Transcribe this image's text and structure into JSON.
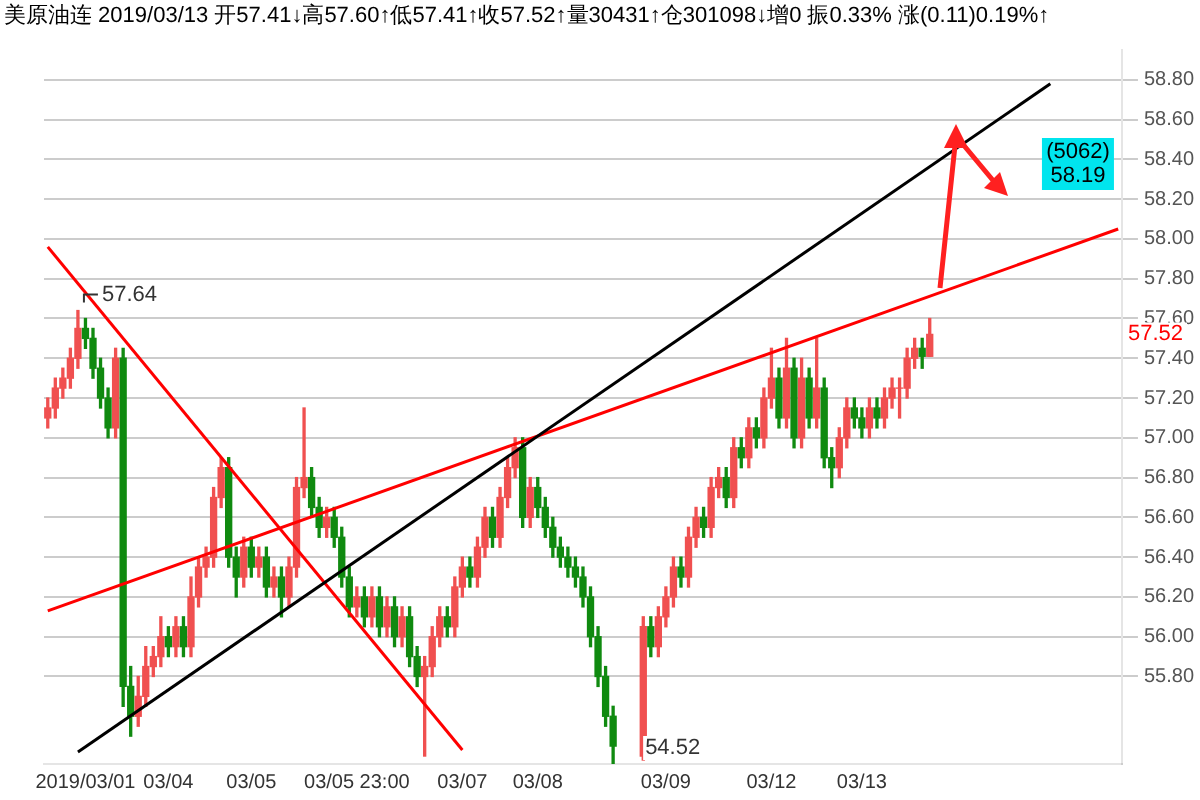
{
  "chart_data": {
    "type": "candlestick",
    "title": "美原油连 2019/03/13 开57.41↓高57.60↑低57.41↑收57.52↑量30431↑仓301098↓增0 振0.33% 涨(0.11)0.19%↑",
    "categories": [
      null,
      null,
      null,
      null,
      null,
      "2019/03/01",
      null,
      null,
      null,
      null,
      null,
      null,
      null,
      null,
      null,
      null,
      "03/04",
      null,
      null,
      null,
      null,
      null,
      null,
      null,
      null,
      null,
      null,
      "03/05",
      null,
      null,
      null,
      null,
      null,
      null,
      null,
      null,
      null,
      null,
      null,
      null,
      null,
      "03/05 23:00",
      null,
      null,
      null,
      null,
      null,
      null,
      null,
      null,
      null,
      null,
      null,
      null,
      null,
      "03/07",
      null,
      null,
      null,
      null,
      null,
      null,
      null,
      null,
      null,
      "03/08",
      null,
      null,
      null,
      null,
      null,
      null,
      null,
      null,
      null,
      null,
      null,
      null,
      null,
      null,
      null,
      null,
      "03/09",
      null,
      null,
      null,
      null,
      null,
      null,
      null,
      null,
      null,
      null,
      null,
      null,
      null,
      "03/12",
      null,
      null,
      null,
      null,
      null,
      null,
      null,
      null,
      null,
      null,
      null,
      "03/13",
      null,
      null,
      null,
      null,
      null,
      null,
      null,
      null,
      null,
      null,
      null,
      null,
      null,
      null,
      null,
      null,
      null,
      null,
      null,
      null,
      null,
      null,
      null,
      null,
      null,
      null,
      null,
      null,
      null,
      null,
      null,
      null,
      null,
      null
    ],
    "ohlc": [
      [
        57.1,
        57.2,
        57.05,
        57.15
      ],
      [
        57.15,
        57.3,
        57.1,
        57.25
      ],
      [
        57.25,
        57.35,
        57.2,
        57.3
      ],
      [
        57.3,
        57.45,
        57.25,
        57.4
      ],
      [
        57.4,
        57.64,
        57.35,
        57.55
      ],
      [
        57.55,
        57.6,
        57.45,
        57.5
      ],
      [
        57.5,
        57.55,
        57.3,
        57.35
      ],
      [
        57.35,
        57.4,
        57.15,
        57.2
      ],
      [
        57.2,
        57.25,
        57.0,
        57.05
      ],
      [
        57.05,
        57.45,
        57.0,
        57.4
      ],
      [
        57.4,
        57.45,
        55.65,
        55.75
      ],
      [
        55.75,
        55.85,
        55.5,
        55.6
      ],
      [
        55.6,
        55.8,
        55.55,
        55.7
      ],
      [
        55.7,
        55.95,
        55.65,
        55.85
      ],
      [
        55.85,
        55.95,
        55.8,
        55.9
      ],
      [
        55.9,
        56.1,
        55.85,
        56.0
      ],
      [
        56.0,
        56.05,
        55.9,
        55.95
      ],
      [
        55.95,
        56.1,
        55.9,
        56.05
      ],
      [
        56.05,
        56.1,
        55.9,
        55.95
      ],
      [
        55.95,
        56.3,
        55.9,
        56.2
      ],
      [
        56.2,
        56.4,
        56.15,
        56.35
      ],
      [
        56.35,
        56.45,
        56.3,
        56.4
      ],
      [
        56.4,
        56.75,
        56.35,
        56.7
      ],
      [
        56.7,
        56.9,
        56.65,
        56.85
      ],
      [
        56.85,
        56.9,
        56.35,
        56.4
      ],
      [
        56.4,
        56.45,
        56.2,
        56.3
      ],
      [
        56.3,
        56.5,
        56.25,
        56.45
      ],
      [
        56.45,
        56.5,
        56.3,
        56.35
      ],
      [
        56.35,
        56.45,
        56.3,
        56.4
      ],
      [
        56.4,
        56.45,
        56.2,
        56.25
      ],
      [
        56.25,
        56.35,
        56.2,
        56.3
      ],
      [
        56.3,
        56.35,
        56.1,
        56.2
      ],
      [
        56.2,
        56.4,
        56.15,
        56.35
      ],
      [
        56.35,
        56.8,
        56.3,
        56.75
      ],
      [
        56.75,
        57.15,
        56.7,
        56.8
      ],
      [
        56.8,
        56.85,
        56.6,
        56.65
      ],
      [
        56.65,
        56.7,
        56.5,
        56.55
      ],
      [
        56.55,
        56.65,
        56.5,
        56.6
      ],
      [
        56.6,
        56.65,
        56.45,
        56.5
      ],
      [
        56.5,
        56.55,
        56.25,
        56.3
      ],
      [
        56.3,
        56.35,
        56.1,
        56.15
      ],
      [
        56.15,
        56.25,
        56.1,
        56.2
      ],
      [
        56.2,
        56.25,
        56.05,
        56.1
      ],
      [
        56.1,
        56.25,
        56.05,
        56.2
      ],
      [
        56.2,
        56.25,
        56.0,
        56.05
      ],
      [
        56.05,
        56.2,
        56.0,
        56.15
      ],
      [
        56.15,
        56.2,
        55.95,
        56.0
      ],
      [
        56.0,
        56.15,
        55.95,
        56.1
      ],
      [
        56.1,
        56.15,
        55.85,
        55.9
      ],
      [
        55.9,
        55.95,
        55.75,
        55.8
      ],
      [
        55.8,
        55.9,
        55.4,
        55.85
      ],
      [
        55.85,
        56.05,
        55.8,
        56.0
      ],
      [
        56.0,
        56.15,
        55.95,
        56.1
      ],
      [
        56.1,
        56.15,
        56.0,
        56.05
      ],
      [
        56.05,
        56.3,
        56.0,
        56.25
      ],
      [
        56.25,
        56.4,
        56.2,
        56.35
      ],
      [
        56.35,
        56.4,
        56.25,
        56.3
      ],
      [
        56.3,
        56.5,
        56.25,
        56.45
      ],
      [
        56.45,
        56.65,
        56.4,
        56.6
      ],
      [
        56.6,
        56.65,
        56.45,
        56.5
      ],
      [
        56.5,
        56.75,
        56.45,
        56.7
      ],
      [
        56.7,
        56.9,
        56.65,
        56.85
      ],
      [
        56.85,
        57.0,
        56.8,
        56.95
      ],
      [
        56.95,
        57.0,
        56.55,
        56.6
      ],
      [
        56.6,
        56.8,
        56.55,
        56.75
      ],
      [
        56.75,
        56.8,
        56.6,
        56.65
      ],
      [
        56.65,
        56.7,
        56.5,
        56.55
      ],
      [
        56.55,
        56.6,
        56.4,
        56.45
      ],
      [
        56.45,
        56.5,
        56.35,
        56.4
      ],
      [
        56.4,
        56.45,
        56.3,
        56.35
      ],
      [
        56.35,
        56.4,
        56.25,
        56.3
      ],
      [
        56.3,
        56.35,
        56.15,
        56.2
      ],
      [
        56.2,
        56.25,
        55.95,
        56.0
      ],
      [
        56.0,
        56.05,
        55.75,
        55.8
      ],
      [
        55.8,
        55.85,
        55.55,
        55.6
      ],
      [
        55.6,
        55.65,
        55.36,
        55.45
      ],
      null,
      null,
      null,
      [
        55.4,
        56.1,
        55.38,
        56.05
      ],
      [
        56.05,
        56.1,
        55.9,
        55.95
      ],
      [
        55.95,
        56.15,
        55.9,
        56.1
      ],
      [
        56.1,
        56.25,
        56.05,
        56.2
      ],
      [
        56.2,
        56.4,
        56.15,
        56.35
      ],
      [
        56.35,
        56.4,
        56.25,
        56.3
      ],
      [
        56.3,
        56.55,
        56.25,
        56.5
      ],
      [
        56.5,
        56.65,
        56.45,
        56.6
      ],
      [
        56.6,
        56.65,
        56.5,
        56.55
      ],
      [
        56.55,
        56.8,
        56.5,
        56.75
      ],
      [
        56.75,
        56.85,
        56.7,
        56.8
      ],
      [
        56.8,
        56.85,
        56.65,
        56.7
      ],
      [
        56.7,
        57.0,
        56.65,
        56.95
      ],
      [
        56.95,
        57.0,
        56.85,
        56.9
      ],
      [
        56.9,
        57.1,
        56.85,
        57.05
      ],
      [
        57.05,
        57.1,
        56.95,
        57.0
      ],
      [
        57.0,
        57.25,
        56.95,
        57.2
      ],
      [
        57.2,
        57.45,
        57.15,
        57.3
      ],
      [
        57.3,
        57.35,
        57.05,
        57.1
      ],
      [
        57.1,
        57.5,
        57.05,
        57.35
      ],
      [
        57.35,
        57.4,
        56.95,
        57.0
      ],
      [
        57.0,
        57.4,
        56.95,
        57.3
      ],
      [
        57.3,
        57.35,
        57.05,
        57.1
      ],
      [
        57.1,
        57.5,
        57.05,
        57.25
      ],
      [
        57.25,
        57.3,
        56.85,
        56.9
      ],
      [
        56.9,
        56.95,
        56.75,
        56.85
      ],
      [
        56.85,
        57.05,
        56.8,
        57.0
      ],
      [
        57.0,
        57.2,
        56.95,
        57.15
      ],
      [
        57.15,
        57.2,
        57.05,
        57.1
      ],
      [
        57.1,
        57.15,
        57.0,
        57.05
      ],
      [
        57.05,
        57.2,
        57.0,
        57.15
      ],
      [
        57.15,
        57.2,
        57.05,
        57.1
      ],
      [
        57.1,
        57.25,
        57.05,
        57.2
      ],
      [
        57.2,
        57.3,
        57.15,
        57.25
      ],
      [
        57.25,
        57.3,
        57.1,
        57.25
      ],
      [
        57.25,
        57.45,
        57.2,
        57.4
      ],
      [
        57.4,
        57.5,
        57.35,
        57.45
      ],
      [
        57.45,
        57.5,
        57.35,
        57.41
      ],
      [
        57.41,
        57.6,
        57.41,
        57.52
      ],
      null,
      null,
      null,
      null,
      null,
      null,
      null,
      null,
      null,
      null,
      null,
      null,
      null,
      null,
      null,
      null,
      null,
      null,
      null,
      null,
      null,
      null,
      null,
      null,
      null
    ],
    "series": [
      {
        "type": "line",
        "color": "#000000",
        "values": [
          null,
          null,
          null,
          null,
          55.42,
          null,
          null,
          null,
          null,
          null,
          null,
          null,
          null,
          null,
          null,
          null,
          null,
          null,
          null,
          null,
          null,
          null,
          null,
          null,
          null,
          null,
          null,
          null,
          null,
          null,
          null,
          null,
          null,
          null,
          null,
          null,
          null,
          null,
          null,
          null,
          null,
          null,
          null,
          null,
          null,
          null,
          null,
          null,
          null,
          null,
          null,
          null,
          null,
          null,
          null,
          null,
          null,
          null,
          null,
          null,
          null,
          null,
          null,
          null,
          null,
          null,
          null,
          null,
          null,
          null,
          null,
          null,
          null,
          null,
          null,
          null,
          null,
          null,
          null,
          null,
          null,
          null,
          null,
          null,
          null,
          null,
          null,
          null,
          null,
          null,
          null,
          null,
          null,
          null,
          null,
          null,
          null,
          null,
          null,
          null,
          null,
          null,
          null,
          null,
          null,
          null,
          null,
          null,
          null,
          null,
          null,
          null,
          null,
          null,
          null,
          null,
          null,
          null,
          null,
          null,
          null,
          null,
          null,
          null,
          null,
          null,
          null,
          null,
          null,
          null,
          null,
          null,
          null,
          58.78,
          null,
          null,
          null,
          null,
          null,
          null,
          null,
          null,
          null
        ]
      },
      {
        "type": "line",
        "color": "#ff0000",
        "values": [
          56.13,
          null,
          null,
          null,
          null,
          null,
          null,
          null,
          null,
          null,
          null,
          null,
          null,
          null,
          null,
          null,
          null,
          null,
          null,
          null,
          null,
          null,
          null,
          null,
          null,
          null,
          null,
          null,
          null,
          null,
          null,
          null,
          null,
          null,
          null,
          null,
          null,
          null,
          null,
          null,
          null,
          null,
          null,
          null,
          null,
          null,
          null,
          null,
          null,
          null,
          null,
          null,
          null,
          null,
          null,
          null,
          null,
          null,
          null,
          null,
          null,
          null,
          null,
          null,
          null,
          null,
          null,
          null,
          null,
          null,
          null,
          null,
          null,
          null,
          null,
          null,
          null,
          null,
          null,
          null,
          null,
          null,
          null,
          null,
          null,
          null,
          null,
          null,
          null,
          null,
          null,
          null,
          null,
          null,
          null,
          null,
          null,
          null,
          null,
          null,
          null,
          null,
          null,
          null,
          null,
          null,
          null,
          null,
          null,
          null,
          null,
          null,
          null,
          null,
          null,
          null,
          null,
          null,
          null,
          null,
          null,
          null,
          null,
          null,
          null,
          null,
          null,
          null,
          null,
          null,
          null,
          null,
          null,
          null,
          null,
          null,
          null,
          null,
          null,
          null,
          null,
          null,
          58.05
        ]
      },
      {
        "type": "line",
        "color": "#ff0000",
        "values": [
          57.96,
          null,
          null,
          null,
          null,
          null,
          null,
          null,
          null,
          null,
          null,
          null,
          null,
          null,
          null,
          null,
          null,
          null,
          null,
          null,
          null,
          null,
          null,
          null,
          null,
          null,
          null,
          null,
          null,
          null,
          null,
          null,
          null,
          null,
          null,
          null,
          null,
          null,
          null,
          null,
          null,
          null,
          null,
          null,
          null,
          null,
          null,
          null,
          null,
          null,
          null,
          null,
          null,
          null,
          null,
          55.43,
          null,
          null,
          null,
          null,
          null,
          null,
          null,
          null,
          null,
          null,
          null,
          null,
          null,
          null,
          null,
          null,
          null,
          null,
          null,
          null,
          null,
          null,
          null,
          null,
          null,
          null,
          null,
          null,
          null,
          null,
          null,
          null,
          null,
          null,
          null,
          null,
          null,
          null,
          null,
          null,
          null,
          null,
          null,
          null,
          null,
          null,
          null,
          null,
          null,
          null,
          null,
          null,
          null,
          null,
          null,
          null,
          null,
          null,
          null,
          null,
          null,
          null,
          null,
          null,
          null,
          null,
          null,
          null,
          null,
          null,
          null,
          null,
          null,
          null,
          null,
          null,
          null,
          null,
          null,
          null,
          null,
          null,
          null,
          null,
          null,
          null,
          null
        ]
      }
    ],
    "ylim": [
      55.36,
      58.95
    ],
    "yticks": [
      {
        "value": 55.8,
        "label": "55.80"
      },
      {
        "value": 56,
        "label": "56.00"
      },
      {
        "value": 56.2,
        "label": "56.20"
      },
      {
        "value": 56.4,
        "label": "56.40"
      },
      {
        "value": 56.6,
        "label": "56.60"
      },
      {
        "value": 56.8,
        "label": "56.80"
      },
      {
        "value": 57,
        "label": "57.00"
      },
      {
        "value": 57.2,
        "label": "57.20"
      },
      {
        "value": 57.4,
        "label": "57.40"
      },
      {
        "value": 57.6,
        "label": "57.60"
      },
      {
        "value": 57.8,
        "label": "57.80"
      },
      {
        "value": 58,
        "label": "58.00"
      },
      {
        "value": 58.2,
        "label": "58.20"
      },
      {
        "value": 58.4,
        "label": "58.40"
      },
      {
        "value": 58.6,
        "label": "58.60"
      },
      {
        "value": 58.8,
        "label": "58.80"
      }
    ],
    "grid": "y",
    "annotations": [
      "57.64",
      "54.52",
      "57.52",
      "(5062)\n58.19"
    ]
  }
}
